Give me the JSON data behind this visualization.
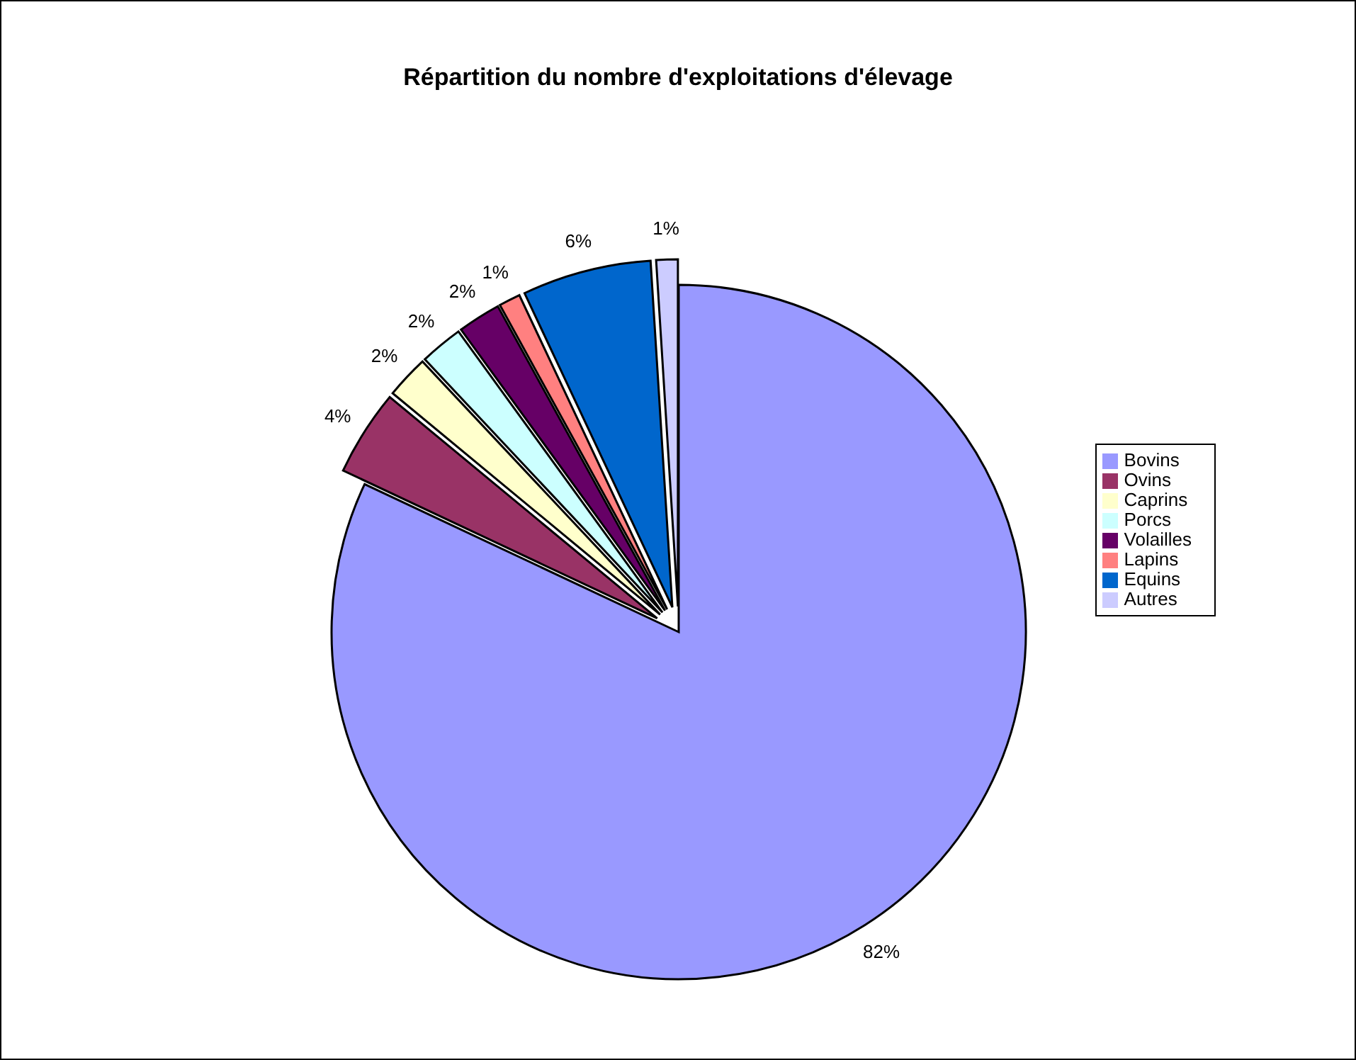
{
  "chart_data": {
    "type": "pie",
    "title": "Répartition du nombre d'exploitations d'élevage",
    "categories": [
      "Bovins",
      "Ovins",
      "Caprins",
      "Porcs",
      "Volailles",
      "Lapins",
      "Equins",
      "Autres"
    ],
    "values": [
      82,
      4,
      2,
      2,
      2,
      1,
      6,
      1
    ],
    "value_labels": [
      "82%",
      "4%",
      "2%",
      "2%",
      "2%",
      "1%",
      "6%",
      "1%"
    ],
    "colors": [
      "#9999ff",
      "#993366",
      "#ffffcc",
      "#ccffff",
      "#660066",
      "#ff8080",
      "#0066cc",
      "#ccccff"
    ],
    "legend": "right"
  }
}
